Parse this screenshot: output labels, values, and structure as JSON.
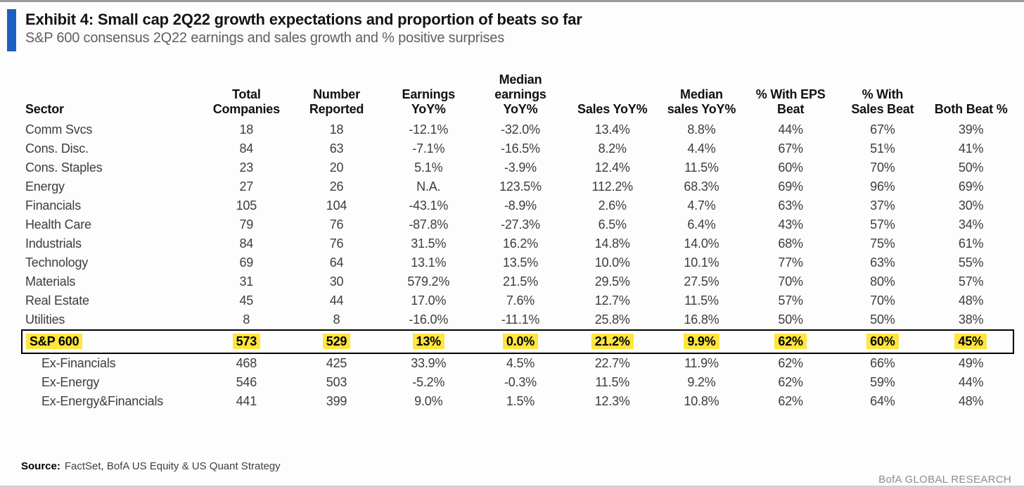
{
  "exhibit": {
    "title": "Exhibit 4: Small cap 2Q22 growth expectations and proportion of beats so far",
    "subtitle": "S&P 600 consensus 2Q22 earnings and sales growth and % positive surprises",
    "accent_color": "#1c5fc2",
    "highlight_color": "#ffe53d"
  },
  "table": {
    "columns": [
      "Sector",
      "Total\nCompanies",
      "Number\nReported",
      "Earnings\nYoY%",
      "Median\nearnings\nYoY%",
      "Sales YoY%",
      "Median\nsales YoY%",
      "% With EPS\nBeat",
      "% With\nSales Beat",
      "Both Beat %"
    ],
    "rows": [
      [
        "Comm Svcs",
        "18",
        "18",
        "-12.1%",
        "-32.0%",
        "13.4%",
        "8.8%",
        "44%",
        "67%",
        "39%"
      ],
      [
        "Cons. Disc.",
        "84",
        "63",
        "-7.1%",
        "-16.5%",
        "8.2%",
        "4.4%",
        "67%",
        "51%",
        "41%"
      ],
      [
        "Cons. Staples",
        "23",
        "20",
        "5.1%",
        "-3.9%",
        "12.4%",
        "11.5%",
        "60%",
        "70%",
        "50%"
      ],
      [
        "Energy",
        "27",
        "26",
        "N.A.",
        "123.5%",
        "112.2%",
        "68.3%",
        "69%",
        "96%",
        "69%"
      ],
      [
        "Financials",
        "105",
        "104",
        "-43.1%",
        "-8.9%",
        "2.6%",
        "4.7%",
        "63%",
        "37%",
        "30%"
      ],
      [
        "Health Care",
        "79",
        "76",
        "-87.8%",
        "-27.3%",
        "6.5%",
        "6.4%",
        "43%",
        "57%",
        "34%"
      ],
      [
        "Industrials",
        "84",
        "76",
        "31.5%",
        "16.2%",
        "14.8%",
        "14.0%",
        "68%",
        "75%",
        "61%"
      ],
      [
        "Technology",
        "69",
        "64",
        "13.1%",
        "13.5%",
        "10.0%",
        "10.1%",
        "77%",
        "63%",
        "55%"
      ],
      [
        "Materials",
        "31",
        "30",
        "579.2%",
        "21.5%",
        "29.5%",
        "27.5%",
        "70%",
        "80%",
        "57%"
      ],
      [
        "Real Estate",
        "45",
        "44",
        "17.0%",
        "7.6%",
        "12.7%",
        "11.5%",
        "57%",
        "70%",
        "48%"
      ],
      [
        "Utilities",
        "8",
        "8",
        "-16.0%",
        "-11.1%",
        "25.8%",
        "16.8%",
        "50%",
        "50%",
        "38%"
      ]
    ],
    "summary_row": [
      "S&P 600",
      "573",
      "529",
      "13%",
      "0.0%",
      "21.2%",
      "9.9%",
      "62%",
      "60%",
      "45%"
    ],
    "ex_rows": [
      [
        "Ex-Financials",
        "468",
        "425",
        "33.9%",
        "4.5%",
        "22.7%",
        "11.9%",
        "62%",
        "66%",
        "49%"
      ],
      [
        "Ex-Energy",
        "546",
        "503",
        "-5.2%",
        "-0.3%",
        "11.5%",
        "9.2%",
        "62%",
        "59%",
        "44%"
      ],
      [
        "Ex-Energy&Financials",
        "441",
        "399",
        "9.0%",
        "1.5%",
        "12.3%",
        "10.8%",
        "62%",
        "64%",
        "48%"
      ]
    ]
  },
  "footer": {
    "source_label": "Source:",
    "source_text": "FactSet, BofA US Equity & US Quant Strategy",
    "branding": "BofA GLOBAL RESEARCH"
  }
}
